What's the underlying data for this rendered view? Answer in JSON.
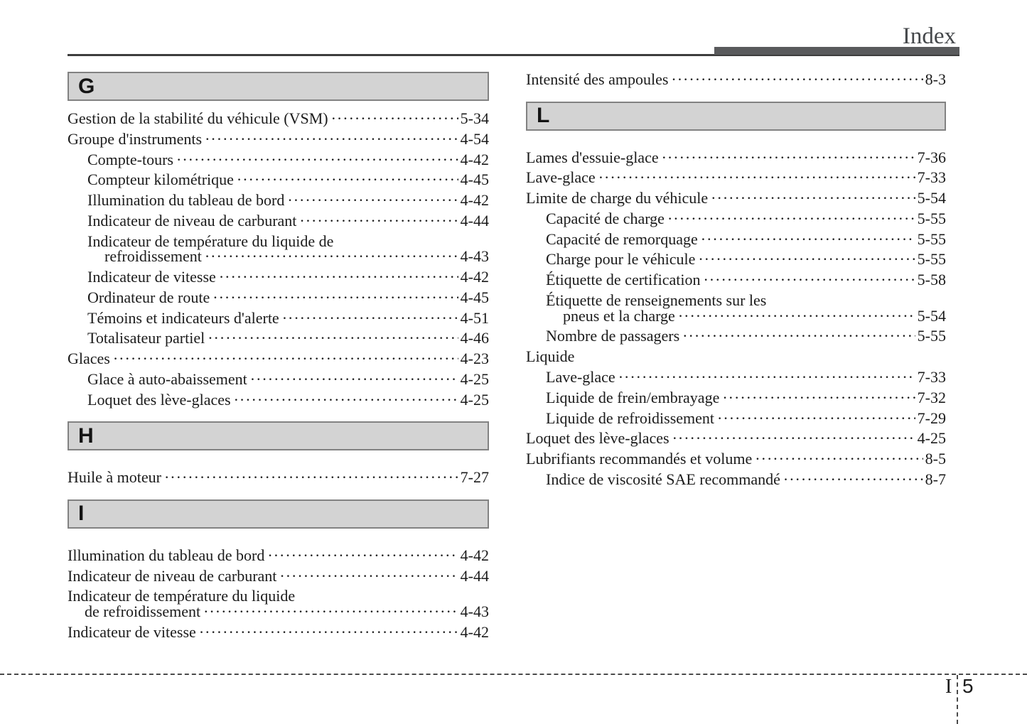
{
  "header": {
    "title": "Index"
  },
  "footer": {
    "page_marker": "I 5",
    "page_marker_letter": "I",
    "page_marker_number": "5"
  },
  "colors": {
    "accent_bar": "#595a5c",
    "header_rule": "#3d3d3d",
    "section_bar_bg": "#d3d3d3",
    "section_bar_border": "#828282",
    "text": "#1b1b1b"
  },
  "columns": {
    "left": {
      "sections": [
        {
          "letter": "G",
          "entries": [
            {
              "label": "Gestion de la stabilité du véhicule (VSM)",
              "page": "5-34",
              "indent": 0
            },
            {
              "label": "Groupe d'instruments",
              "page": "4-54",
              "indent": 0
            },
            {
              "label": "Compte-tours",
              "page": "4-42",
              "indent": 1
            },
            {
              "label": "Compteur kilométrique",
              "page": "4-45",
              "indent": 1
            },
            {
              "label": "Illumination du tableau de bord",
              "page": "4-42",
              "indent": 1
            },
            {
              "label": "Indicateur de niveau de carburant",
              "page": "4-44",
              "indent": 1
            },
            {
              "label": "Indicateur de température du liquide de",
              "label2": "refroidissement",
              "page": "4-43",
              "indent": 1
            },
            {
              "label": "Indicateur de vitesse",
              "page": "4-42",
              "indent": 1
            },
            {
              "label": "Ordinateur de route",
              "page": "4-45",
              "indent": 1
            },
            {
              "label": "Témoins et indicateurs d'alerte",
              "page": "4-51",
              "indent": 1
            },
            {
              "label": "Totalisateur partiel",
              "page": "4-46",
              "indent": 1
            },
            {
              "label": "Glaces",
              "page": "4-23",
              "indent": 0
            },
            {
              "label": "Glace à auto-abaissement",
              "page": "4-25",
              "indent": 1
            },
            {
              "label": "Loquet des lève-glaces",
              "page": "4-25",
              "indent": 1
            }
          ]
        },
        {
          "letter": "H",
          "entries": [
            {
              "label": "Huile à moteur",
              "page": "7-27",
              "indent": 0
            }
          ]
        },
        {
          "letter": "I",
          "entries": [
            {
              "label": "Illumination du tableau de bord",
              "page": "4-42",
              "indent": 0
            },
            {
              "label": "Indicateur de niveau de carburant",
              "page": "4-44",
              "indent": 0
            },
            {
              "label": "Indicateur de température du liquide",
              "label2": "de refroidissement",
              "page": "4-43",
              "indent": 0
            },
            {
              "label": "Indicateur de vitesse",
              "page": "4-42",
              "indent": 0
            }
          ]
        }
      ]
    },
    "right": {
      "sections": [
        {
          "letter": null,
          "entries": [
            {
              "label": "Intensité des ampoules",
              "page": "8-3",
              "indent": 0
            }
          ]
        },
        {
          "letter": "L",
          "entries": [
            {
              "label": "Lames d'essuie-glace",
              "page": "7-36",
              "indent": 0
            },
            {
              "label": "Lave-glace",
              "page": "7-33",
              "indent": 0
            },
            {
              "label": "Limite de charge du véhicule",
              "page": "5-54",
              "indent": 0
            },
            {
              "label": "Capacité de charge",
              "page": "5-55",
              "indent": 1
            },
            {
              "label": "Capacité de remorquage",
              "page": "5-55",
              "indent": 1
            },
            {
              "label": "Charge pour le véhicule",
              "page": "5-55",
              "indent": 1
            },
            {
              "label": "Étiquette de certification",
              "page": "5-58",
              "indent": 1
            },
            {
              "label": "Étiquette de renseignements sur les",
              "label2": "pneus et la charge",
              "page": "5-54",
              "indent": 1
            },
            {
              "label": "Nombre de passagers",
              "page": "5-55",
              "indent": 1
            },
            {
              "label": "Liquide",
              "page": null,
              "indent": 0
            },
            {
              "label": "Lave-glace",
              "page": "7-33",
              "indent": 1
            },
            {
              "label": "Liquide de frein/embrayage",
              "page": "7-32",
              "indent": 1
            },
            {
              "label": "Liquide de refroidissement",
              "page": "7-29",
              "indent": 1
            },
            {
              "label": "Loquet des lève-glaces",
              "page": "4-25",
              "indent": 0
            },
            {
              "label": "Lubrifiants recommandés et volume",
              "page": "8-5",
              "indent": 0
            },
            {
              "label": "Indice de viscosité SAE recommandé",
              "page": "8-7",
              "indent": 1
            }
          ]
        }
      ]
    }
  }
}
